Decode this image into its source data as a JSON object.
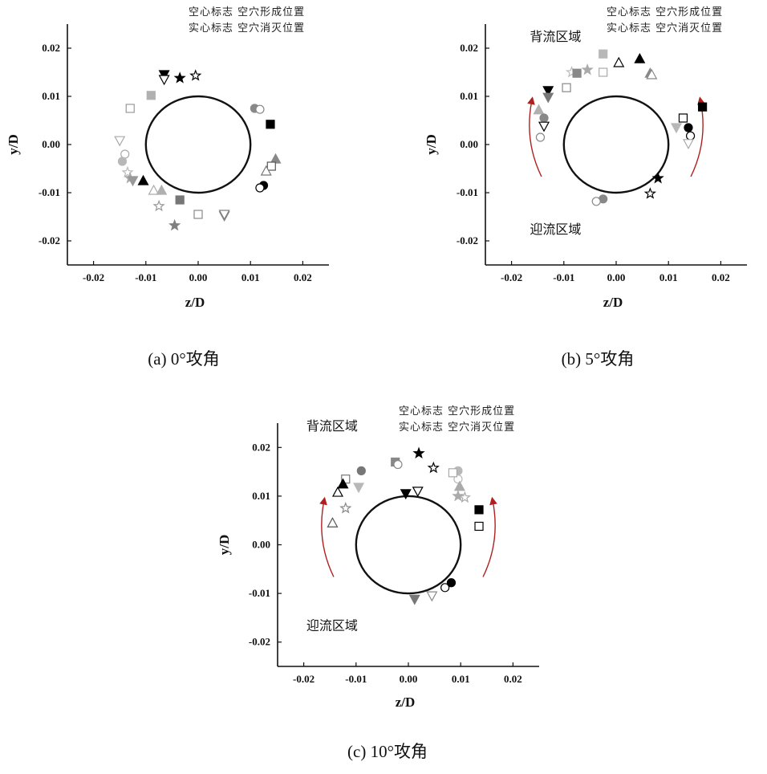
{
  "chart_data": [
    {
      "type": "scatter",
      "caption": "(a) 0°攻角",
      "xlabel": "z/D",
      "ylabel": "y/D",
      "xlim": [
        -0.025,
        0.025
      ],
      "ylim": [
        -0.025,
        0.025
      ],
      "xticks": [
        "-0.02",
        "-0.01",
        "0.00",
        "0.01",
        "0.02"
      ],
      "yticks": [
        "0.02",
        "0.01",
        "0.00",
        "-0.01",
        "-0.02"
      ],
      "circle": {
        "radius": 0.01
      },
      "legend": [
        "空心标志  空穴形成位置",
        "实心标志  空穴消灭位置"
      ],
      "regions": [],
      "arrows": false,
      "points": [
        {
          "x": -0.0065,
          "y": 0.0145,
          "shape": "tri-down",
          "color": "#000000",
          "filled": true
        },
        {
          "x": -0.0065,
          "y": 0.0135,
          "shape": "tri-down",
          "color": "#000000",
          "filled": false
        },
        {
          "x": -0.0035,
          "y": 0.0138,
          "shape": "star",
          "color": "#000000",
          "filled": true
        },
        {
          "x": -0.0005,
          "y": 0.0143,
          "shape": "star",
          "color": "#000000",
          "filled": false
        },
        {
          "x": -0.009,
          "y": 0.0102,
          "shape": "square",
          "color": "#b0b0b0",
          "filled": true
        },
        {
          "x": -0.013,
          "y": 0.0075,
          "shape": "square",
          "color": "#999999",
          "filled": false
        },
        {
          "x": -0.015,
          "y": 0.0008,
          "shape": "tri-down",
          "color": "#aaaaaa",
          "filled": false
        },
        {
          "x": -0.014,
          "y": -0.002,
          "shape": "circle",
          "color": "#aaaaaa",
          "filled": false
        },
        {
          "x": -0.0145,
          "y": -0.0035,
          "shape": "circle",
          "color": "#b8b8b8",
          "filled": true
        },
        {
          "x": -0.0135,
          "y": -0.0058,
          "shape": "star",
          "color": "#bbbbbb",
          "filled": false
        },
        {
          "x": -0.013,
          "y": -0.007,
          "shape": "star",
          "color": "#aaaaaa",
          "filled": true
        },
        {
          "x": -0.0125,
          "y": -0.0075,
          "shape": "tri-down",
          "color": "#999999",
          "filled": true
        },
        {
          "x": -0.0105,
          "y": -0.0075,
          "shape": "tri-up",
          "color": "#000000",
          "filled": true
        },
        {
          "x": -0.0085,
          "y": -0.0095,
          "shape": "tri-up",
          "color": "#aaaaaa",
          "filled": false
        },
        {
          "x": -0.007,
          "y": -0.0095,
          "shape": "tri-up",
          "color": "#b0b0b0",
          "filled": true
        },
        {
          "x": -0.0075,
          "y": -0.0128,
          "shape": "star",
          "color": "#999999",
          "filled": false
        },
        {
          "x": -0.0035,
          "y": -0.0115,
          "shape": "square",
          "color": "#777777",
          "filled": true
        },
        {
          "x": -0.0045,
          "y": -0.0168,
          "shape": "star",
          "color": "#808080",
          "filled": true
        },
        {
          "x": 0.0,
          "y": -0.0145,
          "shape": "square",
          "color": "#888888",
          "filled": false
        },
        {
          "x": 0.005,
          "y": -0.0148,
          "shape": "tri-down",
          "color": "#808080",
          "filled": true
        },
        {
          "x": 0.005,
          "y": -0.0145,
          "shape": "tri-down",
          "color": "#808080",
          "filled": false
        },
        {
          "x": 0.0108,
          "y": 0.0075,
          "shape": "circle",
          "color": "#888888",
          "filled": true
        },
        {
          "x": 0.0118,
          "y": 0.0073,
          "shape": "circle",
          "color": "#888888",
          "filled": false
        },
        {
          "x": 0.0138,
          "y": 0.0042,
          "shape": "square",
          "color": "#000000",
          "filled": true
        },
        {
          "x": 0.0148,
          "y": -0.003,
          "shape": "tri-up",
          "color": "#888888",
          "filled": true
        },
        {
          "x": 0.014,
          "y": -0.0045,
          "shape": "square",
          "color": "#555555",
          "filled": false
        },
        {
          "x": 0.013,
          "y": -0.0055,
          "shape": "tri-up",
          "color": "#777777",
          "filled": false
        },
        {
          "x": 0.0125,
          "y": -0.0085,
          "shape": "circle",
          "color": "#000000",
          "filled": true
        },
        {
          "x": 0.0118,
          "y": -0.009,
          "shape": "circle",
          "color": "#000000",
          "filled": false
        }
      ]
    },
    {
      "type": "scatter",
      "caption": "(b) 5°攻角",
      "xlabel": "z/D",
      "ylabel": "y/D",
      "xlim": [
        -0.025,
        0.025
      ],
      "ylim": [
        -0.025,
        0.025
      ],
      "xticks": [
        "-0.02",
        "-0.01",
        "0.00",
        "0.01",
        "0.02"
      ],
      "yticks": [
        "0.02",
        "0.01",
        "0.00",
        "-0.01",
        "-0.02"
      ],
      "circle": {
        "radius": 0.01
      },
      "legend": [
        "空心标志  空穴形成位置",
        "实心标志  空穴消灭位置"
      ],
      "regions": [
        {
          "text": "背流区域",
          "x": -0.0165,
          "y": 0.0215
        },
        {
          "text": "迎流区域",
          "x": -0.0165,
          "y": -0.0185
        }
      ],
      "arrows": true,
      "points": [
        {
          "x": -0.0025,
          "y": 0.0188,
          "shape": "square",
          "color": "#b8b8b8",
          "filled": true
        },
        {
          "x": -0.0025,
          "y": 0.015,
          "shape": "square",
          "color": "#aaaaaa",
          "filled": false
        },
        {
          "x": 0.0005,
          "y": 0.017,
          "shape": "tri-up",
          "color": "#000000",
          "filled": false
        },
        {
          "x": 0.0045,
          "y": 0.0178,
          "shape": "tri-up",
          "color": "#000000",
          "filled": true
        },
        {
          "x": 0.0065,
          "y": 0.0148,
          "shape": "tri-up",
          "color": "#888888",
          "filled": true
        },
        {
          "x": 0.0068,
          "y": 0.0145,
          "shape": "tri-up",
          "color": "#888888",
          "filled": false
        },
        {
          "x": -0.0055,
          "y": 0.0155,
          "shape": "star",
          "color": "#aaaaaa",
          "filled": true
        },
        {
          "x": -0.0085,
          "y": 0.015,
          "shape": "star",
          "color": "#bbbbbb",
          "filled": false
        },
        {
          "x": -0.0075,
          "y": 0.0148,
          "shape": "square",
          "color": "#888888",
          "filled": true
        },
        {
          "x": -0.0095,
          "y": 0.0118,
          "shape": "square",
          "color": "#888888",
          "filled": false
        },
        {
          "x": -0.013,
          "y": 0.0112,
          "shape": "tri-down",
          "color": "#000000",
          "filled": true
        },
        {
          "x": -0.013,
          "y": 0.0098,
          "shape": "tri-down",
          "color": "#777777",
          "filled": true
        },
        {
          "x": -0.0148,
          "y": 0.0072,
          "shape": "tri-up",
          "color": "#b0b0b0",
          "filled": true
        },
        {
          "x": -0.0138,
          "y": 0.0055,
          "shape": "circle",
          "color": "#888888",
          "filled": true
        },
        {
          "x": -0.0138,
          "y": 0.0038,
          "shape": "tri-down",
          "color": "#000000",
          "filled": false
        },
        {
          "x": -0.0145,
          "y": 0.0015,
          "shape": "circle",
          "color": "#888888",
          "filled": false
        },
        {
          "x": 0.0165,
          "y": 0.0078,
          "shape": "square",
          "color": "#000000",
          "filled": true
        },
        {
          "x": 0.0128,
          "y": 0.0055,
          "shape": "square",
          "color": "#000000",
          "filled": false
        },
        {
          "x": 0.0115,
          "y": 0.0035,
          "shape": "tri-down",
          "color": "#b8b8b8",
          "filled": true
        },
        {
          "x": 0.0138,
          "y": 0.0035,
          "shape": "circle",
          "color": "#000000",
          "filled": true
        },
        {
          "x": 0.0142,
          "y": 0.0018,
          "shape": "circle",
          "color": "#000000",
          "filled": false
        },
        {
          "x": 0.0138,
          "y": 0.0002,
          "shape": "tri-down",
          "color": "#aaaaaa",
          "filled": false
        },
        {
          "x": 0.008,
          "y": -0.007,
          "shape": "star",
          "color": "#000000",
          "filled": true
        },
        {
          "x": 0.0065,
          "y": -0.0102,
          "shape": "star",
          "color": "#000000",
          "filled": false
        },
        {
          "x": -0.0025,
          "y": -0.0113,
          "shape": "circle",
          "color": "#888888",
          "filled": true
        },
        {
          "x": -0.0038,
          "y": -0.0118,
          "shape": "circle",
          "color": "#888888",
          "filled": false
        }
      ]
    },
    {
      "type": "scatter",
      "caption": "(c) 10°攻角",
      "xlabel": "z/D",
      "ylabel": "y/D",
      "xlim": [
        -0.025,
        0.025
      ],
      "ylim": [
        -0.025,
        0.025
      ],
      "xticks": [
        "-0.02",
        "-0.01",
        "0.00",
        "0.01",
        "0.02"
      ],
      "yticks": [
        "0.02",
        "0.01",
        "0.00",
        "-0.01",
        "-0.02"
      ],
      "circle": {
        "radius": 0.01
      },
      "legend": [
        "空心标志  空穴形成位置",
        "实心标志  空穴消灭位置"
      ],
      "regions": [
        {
          "text": "背流区域",
          "x": -0.0195,
          "y": 0.0235
        },
        {
          "text": "迎流区域",
          "x": -0.0195,
          "y": -0.0175
        }
      ],
      "arrows": true,
      "points": [
        {
          "x": -0.0025,
          "y": 0.017,
          "shape": "square",
          "color": "#888888",
          "filled": true
        },
        {
          "x": -0.002,
          "y": 0.0165,
          "shape": "circle",
          "color": "#888888",
          "filled": false
        },
        {
          "x": 0.002,
          "y": 0.0188,
          "shape": "star",
          "color": "#000000",
          "filled": true
        },
        {
          "x": 0.0048,
          "y": 0.0158,
          "shape": "star",
          "color": "#000000",
          "filled": false
        },
        {
          "x": -0.009,
          "y": 0.0152,
          "shape": "circle",
          "color": "#777777",
          "filled": true
        },
        {
          "x": -0.012,
          "y": 0.0135,
          "shape": "square",
          "color": "#777777",
          "filled": false
        },
        {
          "x": -0.0125,
          "y": 0.0125,
          "shape": "tri-up",
          "color": "#000000",
          "filled": true
        },
        {
          "x": -0.0095,
          "y": 0.0118,
          "shape": "tri-down",
          "color": "#b8b8b8",
          "filled": true
        },
        {
          "x": -0.0135,
          "y": 0.0108,
          "shape": "tri-up",
          "color": "#000000",
          "filled": false
        },
        {
          "x": -0.012,
          "y": 0.0075,
          "shape": "star",
          "color": "#888888",
          "filled": false
        },
        {
          "x": -0.0145,
          "y": 0.0045,
          "shape": "tri-up",
          "color": "#555555",
          "filled": false
        },
        {
          "x": -0.0005,
          "y": 0.0105,
          "shape": "tri-down",
          "color": "#000000",
          "filled": true
        },
        {
          "x": 0.0018,
          "y": 0.011,
          "shape": "tri-down",
          "color": "#000000",
          "filled": false
        },
        {
          "x": 0.0095,
          "y": 0.0152,
          "shape": "circle",
          "color": "#b8b8b8",
          "filled": true
        },
        {
          "x": 0.0095,
          "y": 0.0135,
          "shape": "circle",
          "color": "#b8b8b8",
          "filled": false
        },
        {
          "x": 0.0085,
          "y": 0.0148,
          "shape": "square",
          "color": "#aaaaaa",
          "filled": false
        },
        {
          "x": 0.0098,
          "y": 0.012,
          "shape": "tri-up",
          "color": "#aaaaaa",
          "filled": true
        },
        {
          "x": 0.0095,
          "y": 0.01,
          "shape": "star",
          "color": "#aaaaaa",
          "filled": true
        },
        {
          "x": 0.0108,
          "y": 0.0097,
          "shape": "star",
          "color": "#aaaaaa",
          "filled": false
        },
        {
          "x": 0.0135,
          "y": 0.0072,
          "shape": "square",
          "color": "#000000",
          "filled": true
        },
        {
          "x": 0.0135,
          "y": 0.0038,
          "shape": "square",
          "color": "#000000",
          "filled": false
        },
        {
          "x": 0.0082,
          "y": -0.0078,
          "shape": "circle",
          "color": "#000000",
          "filled": true
        },
        {
          "x": 0.007,
          "y": -0.0088,
          "shape": "circle",
          "color": "#000000",
          "filled": false
        },
        {
          "x": 0.0045,
          "y": -0.0105,
          "shape": "tri-down",
          "color": "#888888",
          "filled": false
        },
        {
          "x": 0.0012,
          "y": -0.0112,
          "shape": "tri-down",
          "color": "#777777",
          "filled": true
        }
      ]
    }
  ]
}
